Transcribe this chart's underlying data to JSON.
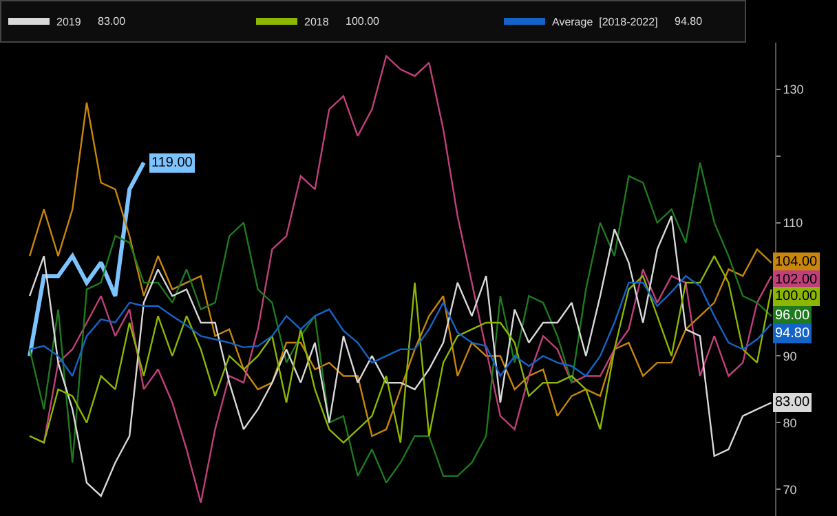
{
  "chart_data": {
    "type": "line",
    "categories": [
      null,
      null,
      null,
      null,
      null,
      null,
      null,
      null,
      null,
      null,
      null,
      null,
      null,
      null,
      null,
      null,
      null,
      null,
      null,
      null,
      null,
      null,
      null,
      null,
      null,
      null,
      null,
      null,
      null,
      null,
      null,
      null,
      null,
      null,
      null,
      null,
      null,
      null,
      null,
      null,
      null,
      null,
      null,
      null,
      null,
      null,
      null,
      null,
      null,
      null,
      null,
      null,
      null
    ],
    "series": [
      {
        "color": "#7cc4ff",
        "values": [
          90,
          102,
          102,
          105,
          101,
          104,
          99,
          115,
          119,
          null,
          null,
          null,
          null,
          null,
          null,
          null,
          null,
          null,
          null,
          null,
          null,
          null,
          null,
          null,
          null,
          null,
          null,
          null,
          null,
          null,
          null,
          null,
          null,
          null,
          null,
          null,
          null,
          null,
          null,
          null,
          null,
          null,
          null,
          null,
          null,
          null,
          null,
          null,
          null,
          null,
          null,
          null,
          null
        ],
        "value_labels": [
          null,
          null,
          null,
          null,
          null,
          null,
          null,
          null,
          "119.00",
          null,
          null,
          null,
          null,
          null,
          null,
          null,
          null,
          null,
          null,
          null,
          null,
          null,
          null,
          null,
          null,
          null,
          null,
          null,
          null,
          null,
          null,
          null,
          null,
          null,
          null,
          null,
          null,
          null,
          null,
          null,
          null,
          null,
          null,
          null,
          null,
          null,
          null,
          null,
          null,
          null,
          null,
          null,
          null
        ]
      },
      {
        "color": "#c8860a",
        "values": [
          105,
          112,
          105,
          112,
          128,
          116,
          115,
          108,
          99,
          105,
          100,
          101,
          102,
          93,
          94,
          88,
          85,
          86,
          92,
          92,
          88,
          89,
          87,
          87,
          78,
          79,
          85,
          91,
          96,
          99,
          87,
          92,
          90,
          90,
          85,
          87,
          88,
          81,
          84,
          85,
          84,
          91,
          92,
          87,
          89,
          89,
          94,
          96,
          98,
          103,
          102,
          106,
          104
        ],
        "value_labels": [
          null,
          null,
          null,
          null,
          null,
          null,
          null,
          null,
          null,
          null,
          null,
          null,
          null,
          null,
          null,
          null,
          null,
          null,
          null,
          null,
          null,
          null,
          null,
          null,
          null,
          null,
          null,
          null,
          null,
          null,
          null,
          null,
          null,
          null,
          null,
          null,
          null,
          null,
          null,
          null,
          null,
          null,
          null,
          null,
          null,
          null,
          null,
          null,
          null,
          null,
          null,
          null,
          "104.00"
        ]
      },
      {
        "color": "#c0407a",
        "values": [
          78,
          77,
          89,
          91,
          95,
          99,
          93,
          97,
          85,
          88,
          83,
          76,
          68,
          79,
          87,
          86,
          94,
          106,
          108,
          117,
          115,
          127,
          129,
          123,
          127,
          135,
          133,
          132,
          134,
          124,
          111,
          101,
          91,
          81,
          79,
          87,
          93,
          91,
          86,
          87,
          87,
          91,
          94,
          103,
          98,
          102,
          101,
          87,
          93,
          87,
          89,
          98,
          102
        ],
        "value_labels": [
          null,
          null,
          null,
          null,
          null,
          null,
          null,
          null,
          null,
          null,
          null,
          null,
          null,
          null,
          null,
          null,
          null,
          null,
          null,
          null,
          null,
          null,
          null,
          null,
          null,
          null,
          null,
          null,
          null,
          null,
          null,
          null,
          null,
          null,
          null,
          null,
          null,
          null,
          null,
          null,
          null,
          null,
          null,
          null,
          null,
          null,
          null,
          null,
          null,
          null,
          null,
          null,
          "102.00"
        ]
      },
      {
        "color": "#1f7a1f",
        "values": [
          91,
          82,
          97,
          74,
          100,
          101,
          108,
          107,
          101,
          101,
          98,
          103,
          97,
          98,
          108,
          110,
          100,
          98,
          89,
          93,
          96,
          80,
          81,
          72,
          76,
          71,
          74,
          78,
          78,
          72,
          72,
          74,
          78,
          99,
          89,
          99,
          98,
          93,
          86,
          100,
          110,
          105,
          117,
          116,
          110,
          112,
          107,
          119,
          110,
          105,
          99,
          98,
          96
        ],
        "value_labels": [
          null,
          null,
          null,
          null,
          null,
          null,
          null,
          null,
          null,
          null,
          null,
          null,
          null,
          null,
          null,
          null,
          null,
          null,
          null,
          null,
          null,
          null,
          null,
          null,
          null,
          null,
          null,
          null,
          null,
          null,
          null,
          null,
          null,
          null,
          null,
          null,
          null,
          null,
          null,
          null,
          null,
          null,
          null,
          null,
          null,
          null,
          null,
          null,
          null,
          null,
          null,
          null,
          "96.00"
        ]
      },
      {
        "name": "2019",
        "color": "#d9d9d9",
        "values": [
          99,
          105,
          89,
          82,
          71,
          69,
          74,
          78,
          98,
          103,
          99,
          100,
          95,
          95,
          86,
          79,
          82,
          86,
          91,
          86,
          92,
          80,
          93,
          86,
          90,
          86,
          86,
          85,
          88,
          92,
          101,
          96,
          102,
          83,
          97,
          92,
          95,
          95,
          98,
          90,
          99,
          109,
          104,
          95,
          106,
          111,
          94,
          93,
          75,
          76,
          81,
          82,
          83
        ],
        "value_labels": [
          null,
          null,
          null,
          null,
          null,
          null,
          null,
          null,
          null,
          null,
          null,
          null,
          null,
          null,
          null,
          null,
          null,
          null,
          null,
          null,
          null,
          null,
          null,
          null,
          null,
          null,
          null,
          null,
          null,
          null,
          null,
          null,
          null,
          null,
          null,
          null,
          null,
          null,
          null,
          null,
          null,
          null,
          null,
          null,
          null,
          null,
          null,
          null,
          null,
          null,
          null,
          null,
          "83.00"
        ]
      },
      {
        "name": "2018",
        "color": "#8db600",
        "values": [
          78,
          77,
          85,
          84,
          80,
          87,
          85,
          95,
          87,
          96,
          90,
          96,
          91,
          84,
          90,
          88,
          90,
          93,
          83,
          94,
          85,
          79,
          77,
          79,
          81,
          87,
          77,
          101,
          78,
          89,
          93,
          94,
          95,
          95,
          92,
          84,
          86,
          86,
          87,
          85,
          79,
          91,
          100,
          102,
          96,
          90,
          101,
          101,
          105,
          101,
          91,
          89,
          100
        ],
        "value_labels": [
          null,
          null,
          null,
          null,
          null,
          null,
          null,
          null,
          null,
          null,
          null,
          null,
          null,
          null,
          null,
          null,
          null,
          null,
          null,
          null,
          null,
          null,
          null,
          null,
          null,
          null,
          null,
          null,
          null,
          null,
          null,
          null,
          null,
          null,
          null,
          null,
          null,
          null,
          null,
          null,
          null,
          null,
          null,
          null,
          null,
          null,
          null,
          null,
          null,
          null,
          null,
          null,
          "100.00"
        ]
      },
      {
        "name": "Average  [2018-2022]",
        "color": "#1464c8",
        "values": [
          91,
          91.5,
          90,
          87,
          93,
          95.5,
          95,
          98,
          97.5,
          97.5,
          96,
          94.6,
          93,
          92.5,
          92,
          91.3,
          91.5,
          93,
          96,
          94,
          96,
          97,
          93.8,
          92,
          89,
          90,
          91,
          91,
          94,
          98,
          93.5,
          92,
          91.5,
          87,
          90,
          88.5,
          90,
          89,
          88.5,
          87,
          90,
          95,
          101,
          101,
          97.5,
          99.6,
          102,
          100.5,
          96,
          92,
          91,
          92.5,
          94.8
        ],
        "value_labels": [
          null,
          null,
          null,
          null,
          null,
          null,
          null,
          null,
          null,
          null,
          null,
          null,
          null,
          null,
          null,
          null,
          null,
          null,
          null,
          null,
          null,
          null,
          null,
          null,
          null,
          null,
          null,
          null,
          null,
          null,
          null,
          null,
          null,
          null,
          null,
          null,
          null,
          null,
          null,
          null,
          null,
          null,
          null,
          null,
          null,
          null,
          null,
          null,
          null,
          null,
          null,
          null,
          "94.80"
        ]
      }
    ],
    "ylim": [
      66,
      137
    ],
    "yticks": [
      70,
      80,
      90,
      {
        "value": 100,
        "label": null
      },
      110,
      {
        "value": 120,
        "label": null
      },
      130
    ],
    "grid": false,
    "legend": "top left",
    "marker": "none",
    "line_style": "solid",
    "annotations": [
      "83.00",
      "100.00",
      "94.80"
    ]
  }
}
